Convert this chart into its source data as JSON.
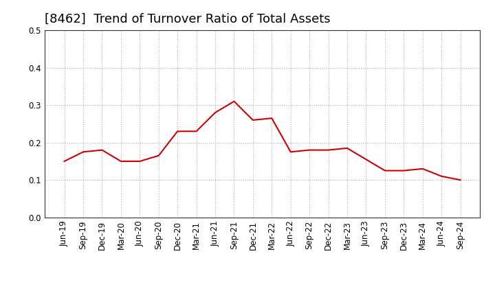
{
  "title": "[8462]  Trend of Turnover Ratio of Total Assets",
  "labels": [
    "Jun-19",
    "Sep-19",
    "Dec-19",
    "Mar-20",
    "Jun-20",
    "Sep-20",
    "Dec-20",
    "Mar-21",
    "Jun-21",
    "Sep-21",
    "Dec-21",
    "Mar-22",
    "Jun-22",
    "Sep-22",
    "Dec-22",
    "Mar-23",
    "Jun-23",
    "Sep-23",
    "Dec-23",
    "Mar-24",
    "Jun-24",
    "Sep-24"
  ],
  "values": [
    0.15,
    0.175,
    0.18,
    0.15,
    0.15,
    0.165,
    0.23,
    0.23,
    0.28,
    0.31,
    0.26,
    0.265,
    0.175,
    0.18,
    0.18,
    0.185,
    0.155,
    0.125,
    0.125,
    0.13,
    0.11,
    0.1
  ],
  "line_color": "#cc0000",
  "background_color": "#ffffff",
  "ylim": [
    0.0,
    0.5
  ],
  "yticks": [
    0.0,
    0.1,
    0.2,
    0.3,
    0.4,
    0.5
  ],
  "grid_color": "#aaaaaa",
  "title_fontsize": 13,
  "tick_fontsize": 8.5
}
